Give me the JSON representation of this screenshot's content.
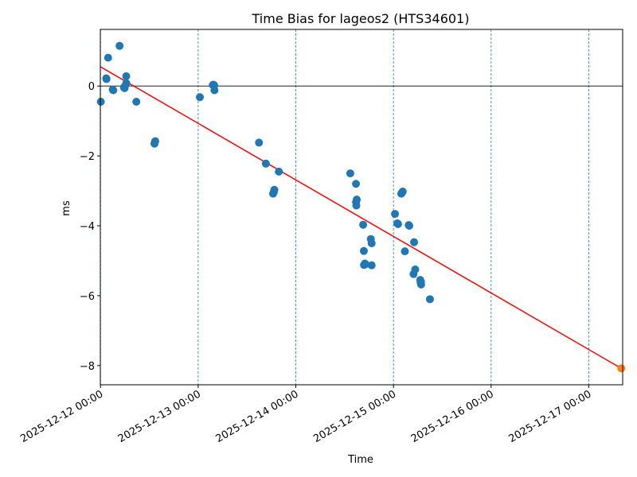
{
  "chart_data": {
    "type": "scatter",
    "title": "Time Bias for lageos2 (HTS34601)",
    "xlabel": "Time",
    "ylabel": "ms",
    "x_type": "datetime",
    "xlim": [
      "2025-12-11 23:57",
      "2025-12-17 08:20"
    ],
    "ylim": [
      -8.55,
      1.62
    ],
    "x_ticks": [
      "2025-12-12 00:00",
      "2025-12-13 00:00",
      "2025-12-14 00:00",
      "2025-12-15 00:00",
      "2025-12-16 00:00",
      "2025-12-17 00:00"
    ],
    "y_ticks": [
      0,
      -2,
      -4,
      -6,
      -8
    ],
    "y_tick_labels": [
      "0",
      "−2",
      "−4",
      "−6",
      "−8"
    ],
    "grid": "vertical-dashed-at-day-ticks",
    "zero_line": true,
    "series": [
      {
        "kind": "scatter",
        "color": "#1f77b4",
        "points": [
          {
            "x": "2025-12-12 00:04",
            "y": -0.45
          },
          {
            "x": "2025-12-12 01:24",
            "y": 0.22
          },
          {
            "x": "2025-12-12 01:28",
            "y": 0.2
          },
          {
            "x": "2025-12-12 01:52",
            "y": 0.81
          },
          {
            "x": "2025-12-12 03:00",
            "y": -0.1
          },
          {
            "x": "2025-12-12 03:08",
            "y": -0.12
          },
          {
            "x": "2025-12-12 04:41",
            "y": 1.15
          },
          {
            "x": "2025-12-12 05:46",
            "y": -0.04
          },
          {
            "x": "2025-12-12 05:55",
            "y": -0.06
          },
          {
            "x": "2025-12-12 06:19",
            "y": 0.28
          },
          {
            "x": "2025-12-12 06:20",
            "y": 0.08
          },
          {
            "x": "2025-12-12 06:14",
            "y": 0.05
          },
          {
            "x": "2025-12-12 08:48",
            "y": -0.45
          },
          {
            "x": "2025-12-12 13:16",
            "y": -1.65
          },
          {
            "x": "2025-12-12 13:21",
            "y": -1.6
          },
          {
            "x": "2025-12-12 13:27",
            "y": -1.58
          },
          {
            "x": "2025-12-13 00:25",
            "y": -0.32
          },
          {
            "x": "2025-12-13 03:36",
            "y": 0.03
          },
          {
            "x": "2025-12-13 03:45",
            "y": 0.04
          },
          {
            "x": "2025-12-13 03:56",
            "y": 0.02
          },
          {
            "x": "2025-12-13 04:00",
            "y": -0.12
          },
          {
            "x": "2025-12-13 14:57",
            "y": -1.62
          },
          {
            "x": "2025-12-13 16:38",
            "y": -2.22
          },
          {
            "x": "2025-12-13 18:25",
            "y": -3.08
          },
          {
            "x": "2025-12-13 18:36",
            "y": -3.03
          },
          {
            "x": "2025-12-13 18:43",
            "y": -2.97
          },
          {
            "x": "2025-12-13 19:50",
            "y": -2.45
          },
          {
            "x": "2025-12-14 13:23",
            "y": -2.5
          },
          {
            "x": "2025-12-14 14:47",
            "y": -2.8
          },
          {
            "x": "2025-12-14 14:48",
            "y": -3.32
          },
          {
            "x": "2025-12-14 14:52",
            "y": -3.42
          },
          {
            "x": "2025-12-14 14:58",
            "y": -3.25
          },
          {
            "x": "2025-12-14 16:33",
            "y": -3.97
          },
          {
            "x": "2025-12-14 16:43",
            "y": -4.72
          },
          {
            "x": "2025-12-14 16:46",
            "y": -5.12
          },
          {
            "x": "2025-12-14 16:58",
            "y": -5.08
          },
          {
            "x": "2025-12-14 17:08",
            "y": -5.1
          },
          {
            "x": "2025-12-14 18:26",
            "y": -4.38
          },
          {
            "x": "2025-12-14 18:38",
            "y": -4.5
          },
          {
            "x": "2025-12-14 18:38",
            "y": -5.13
          },
          {
            "x": "2025-12-15 00:22",
            "y": -3.66
          },
          {
            "x": "2025-12-15 00:59",
            "y": -3.93
          },
          {
            "x": "2025-12-15 01:07",
            "y": -3.95
          },
          {
            "x": "2025-12-15 01:55",
            "y": -3.08
          },
          {
            "x": "2025-12-15 02:16",
            "y": -3.02
          },
          {
            "x": "2025-12-15 02:02",
            "y": -3.06
          },
          {
            "x": "2025-12-15 02:48",
            "y": -4.73
          },
          {
            "x": "2025-12-15 03:45",
            "y": -3.98
          },
          {
            "x": "2025-12-15 03:53",
            "y": -4.0
          },
          {
            "x": "2025-12-15 05:04",
            "y": -4.47
          },
          {
            "x": "2025-12-15 04:56",
            "y": -5.38
          },
          {
            "x": "2025-12-15 05:20",
            "y": -5.25
          },
          {
            "x": "2025-12-15 06:35",
            "y": -5.55
          },
          {
            "x": "2025-12-15 06:40",
            "y": -5.62
          },
          {
            "x": "2025-12-15 06:48",
            "y": -5.68
          },
          {
            "x": "2025-12-15 06:45",
            "y": -5.6
          },
          {
            "x": "2025-12-15 08:58",
            "y": -6.1
          }
        ]
      },
      {
        "kind": "line",
        "color": "#ff0000",
        "points": [
          {
            "x": "2025-12-12 00:00",
            "y": 0.55
          },
          {
            "x": "2025-12-17 08:00",
            "y": -8.08
          }
        ]
      },
      {
        "kind": "scatter",
        "color": "#ff7f0e",
        "points": [
          {
            "x": "2025-12-17 08:00",
            "y": -8.08
          }
        ]
      }
    ]
  }
}
